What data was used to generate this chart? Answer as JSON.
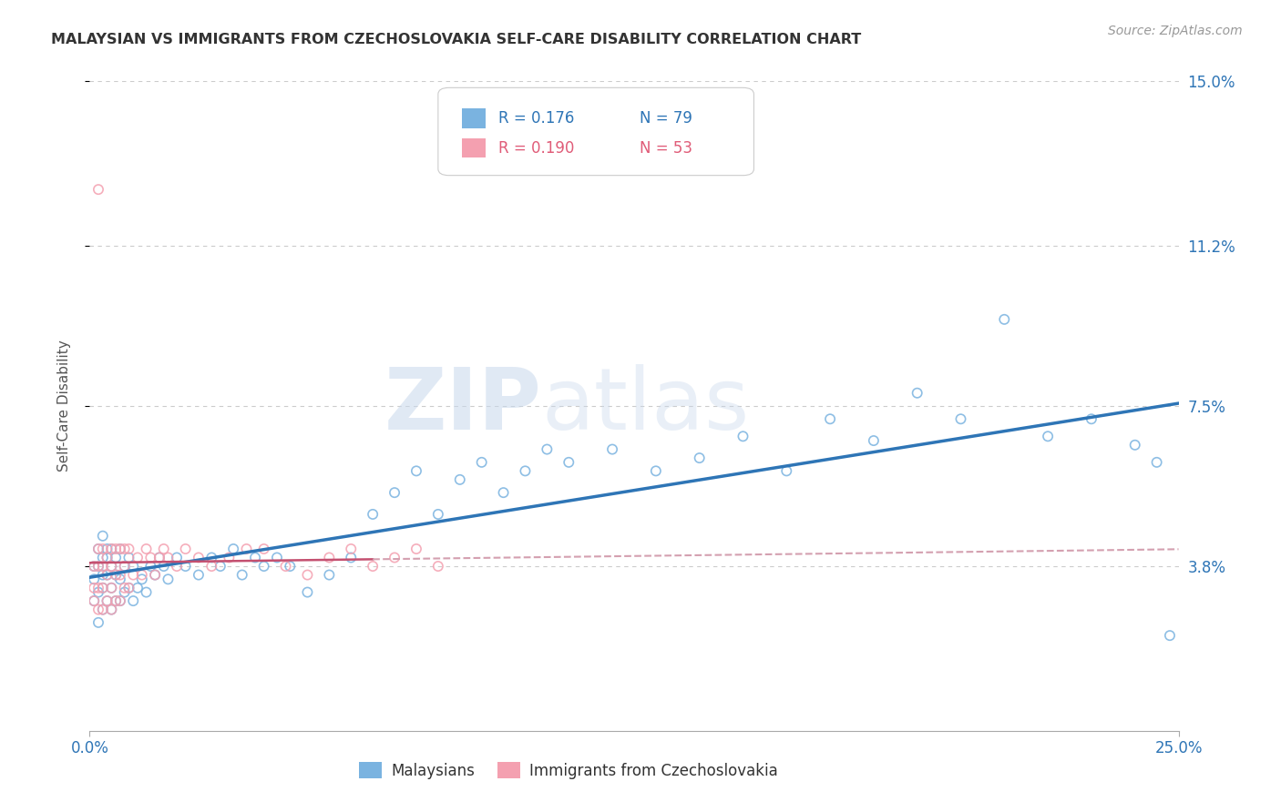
{
  "title": "MALAYSIAN VS IMMIGRANTS FROM CZECHOSLOVAKIA SELF-CARE DISABILITY CORRELATION CHART",
  "source_text": "Source: ZipAtlas.com",
  "ylabel": "Self-Care Disability",
  "xlim": [
    0.0,
    0.25
  ],
  "ylim": [
    0.0,
    0.15
  ],
  "yticks": [
    0.038,
    0.075,
    0.112,
    0.15
  ],
  "ytick_labels": [
    "3.8%",
    "7.5%",
    "11.2%",
    "15.0%"
  ],
  "xticks": [
    0.0,
    0.25
  ],
  "xtick_labels": [
    "0.0%",
    "25.0%"
  ],
  "grid_color": "#cccccc",
  "background_color": "#ffffff",
  "watermark_zip": "ZIP",
  "watermark_atlas": "atlas",
  "legend_r1": "R = 0.176",
  "legend_n1": "N = 79",
  "legend_r2": "R = 0.190",
  "legend_n2": "N = 53",
  "color_blue": "#7ab3e0",
  "color_pink": "#f4a0b0",
  "color_blue_text": "#2E75B6",
  "color_pink_text": "#E05C78",
  "trend_blue": "#2E75B6",
  "trend_pink_solid": "#c45070",
  "trend_pink_dashed": "#d4a0b0",
  "malaysians_x": [
    0.001,
    0.001,
    0.001,
    0.002,
    0.002,
    0.002,
    0.002,
    0.003,
    0.003,
    0.003,
    0.003,
    0.003,
    0.004,
    0.004,
    0.004,
    0.004,
    0.005,
    0.005,
    0.005,
    0.005,
    0.006,
    0.006,
    0.006,
    0.007,
    0.007,
    0.007,
    0.008,
    0.008,
    0.009,
    0.009,
    0.01,
    0.01,
    0.011,
    0.012,
    0.013,
    0.014,
    0.015,
    0.016,
    0.017,
    0.018,
    0.02,
    0.022,
    0.025,
    0.028,
    0.03,
    0.033,
    0.035,
    0.038,
    0.04,
    0.043,
    0.046,
    0.05,
    0.055,
    0.06,
    0.065,
    0.07,
    0.075,
    0.08,
    0.085,
    0.09,
    0.095,
    0.1,
    0.105,
    0.11,
    0.12,
    0.13,
    0.14,
    0.15,
    0.16,
    0.17,
    0.18,
    0.19,
    0.2,
    0.21,
    0.22,
    0.23,
    0.24,
    0.245,
    0.248
  ],
  "malaysians_y": [
    0.03,
    0.035,
    0.038,
    0.025,
    0.032,
    0.038,
    0.042,
    0.028,
    0.033,
    0.036,
    0.04,
    0.045,
    0.03,
    0.036,
    0.04,
    0.042,
    0.028,
    0.033,
    0.038,
    0.042,
    0.03,
    0.036,
    0.04,
    0.03,
    0.035,
    0.042,
    0.032,
    0.038,
    0.033,
    0.04,
    0.03,
    0.038,
    0.033,
    0.035,
    0.032,
    0.038,
    0.036,
    0.04,
    0.038,
    0.035,
    0.04,
    0.038,
    0.036,
    0.04,
    0.038,
    0.042,
    0.036,
    0.04,
    0.038,
    0.04,
    0.038,
    0.032,
    0.036,
    0.04,
    0.05,
    0.055,
    0.06,
    0.05,
    0.058,
    0.062,
    0.055,
    0.06,
    0.065,
    0.062,
    0.065,
    0.06,
    0.063,
    0.068,
    0.06,
    0.072,
    0.067,
    0.078,
    0.072,
    0.095,
    0.068,
    0.072,
    0.066,
    0.062,
    0.022
  ],
  "czech_x": [
    0.001,
    0.001,
    0.001,
    0.002,
    0.002,
    0.002,
    0.002,
    0.003,
    0.003,
    0.003,
    0.003,
    0.004,
    0.004,
    0.004,
    0.005,
    0.005,
    0.005,
    0.005,
    0.006,
    0.006,
    0.006,
    0.007,
    0.007,
    0.007,
    0.008,
    0.008,
    0.008,
    0.009,
    0.009,
    0.01,
    0.011,
    0.012,
    0.013,
    0.014,
    0.015,
    0.016,
    0.017,
    0.018,
    0.02,
    0.022,
    0.025,
    0.028,
    0.032,
    0.036,
    0.04,
    0.045,
    0.05,
    0.055,
    0.06,
    0.065,
    0.07,
    0.075,
    0.08
  ],
  "czech_y": [
    0.03,
    0.033,
    0.038,
    0.028,
    0.033,
    0.038,
    0.042,
    0.028,
    0.033,
    0.038,
    0.042,
    0.03,
    0.036,
    0.04,
    0.028,
    0.033,
    0.038,
    0.042,
    0.03,
    0.036,
    0.042,
    0.03,
    0.036,
    0.042,
    0.033,
    0.038,
    0.042,
    0.033,
    0.042,
    0.036,
    0.04,
    0.036,
    0.042,
    0.04,
    0.036,
    0.04,
    0.042,
    0.04,
    0.038,
    0.042,
    0.04,
    0.038,
    0.04,
    0.042,
    0.042,
    0.038,
    0.036,
    0.04,
    0.042,
    0.038,
    0.04,
    0.042,
    0.038
  ],
  "czech_outlier_x": [
    0.002
  ],
  "czech_outlier_y": [
    0.125
  ]
}
